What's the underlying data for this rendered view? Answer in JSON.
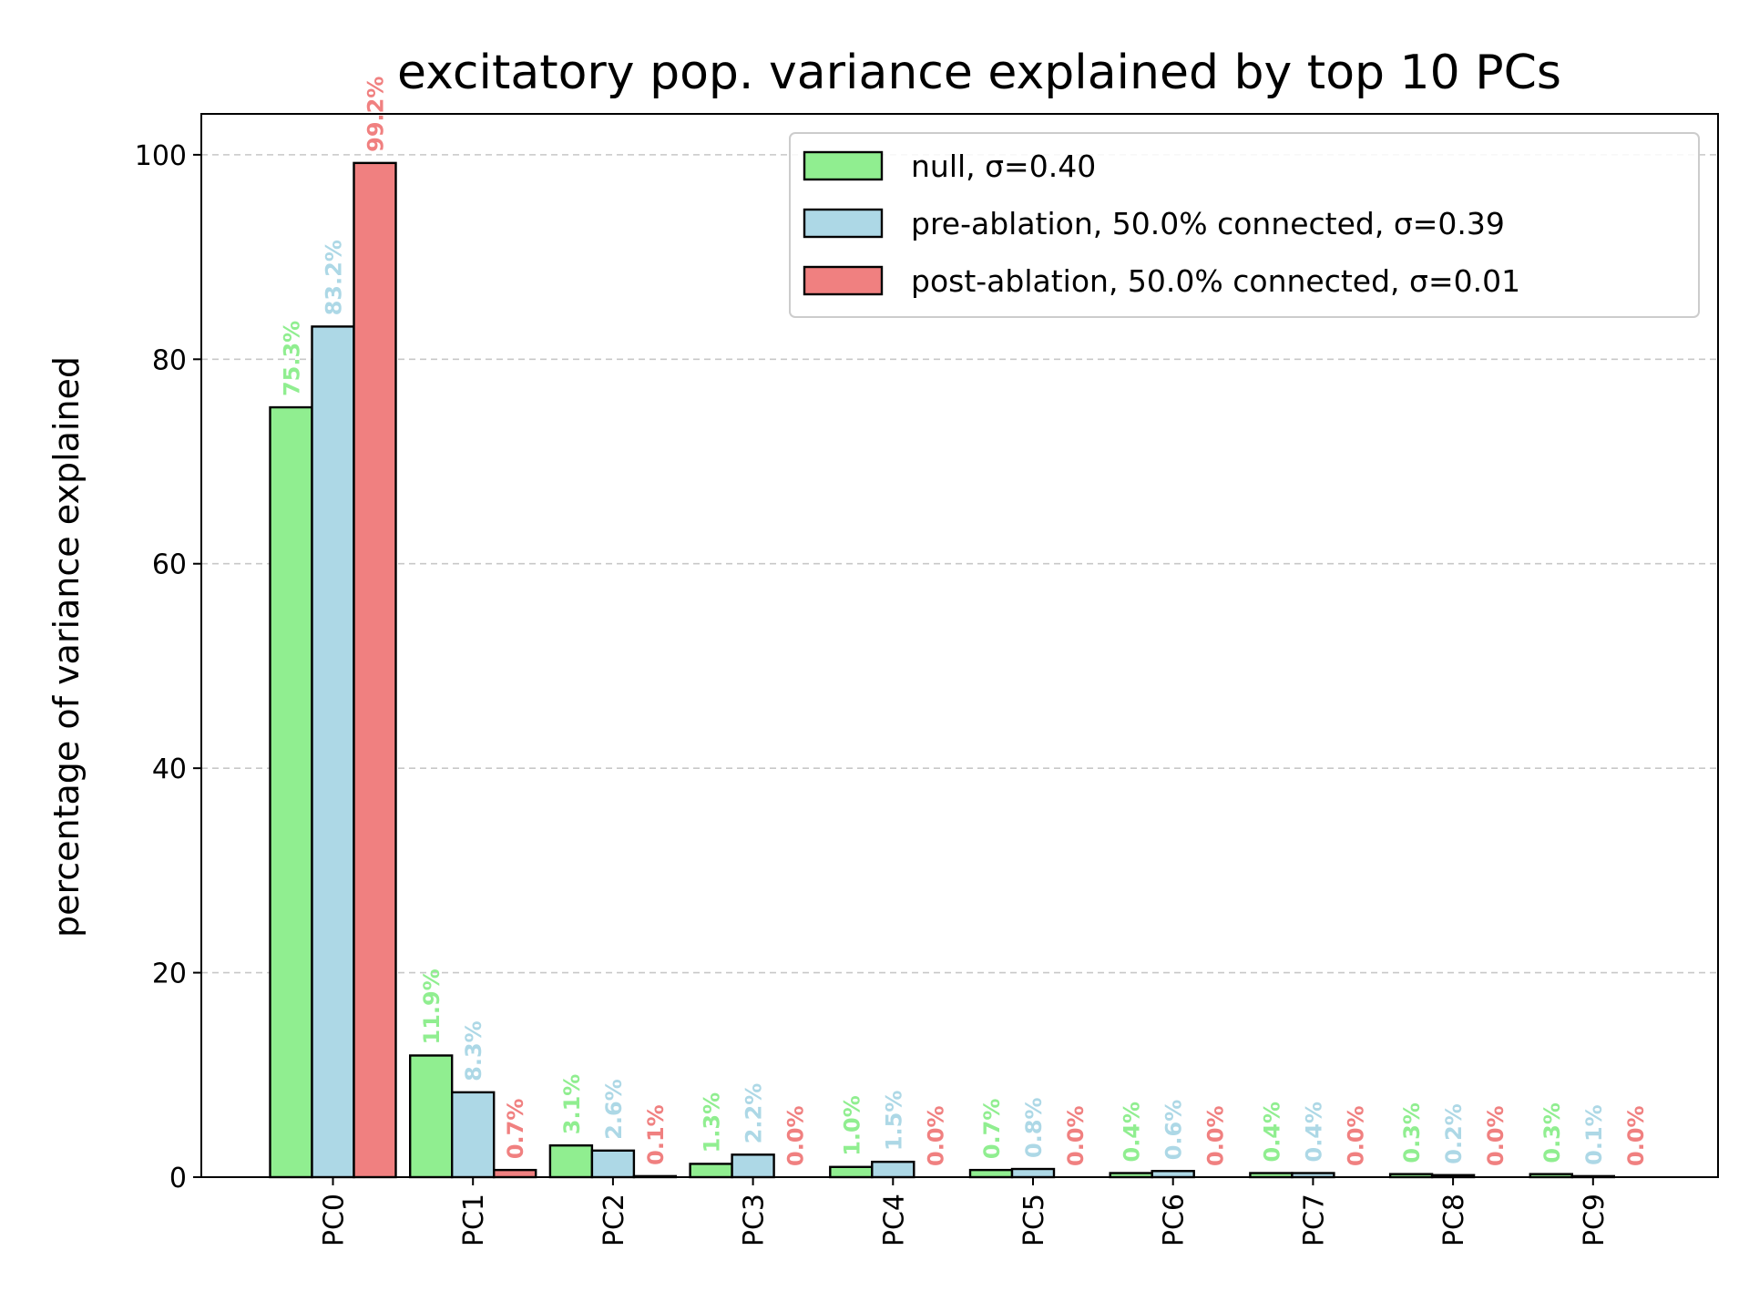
{
  "chart_data": {
    "type": "bar",
    "title": "excitatory pop. variance explained by top 10 PCs",
    "xlabel": "",
    "ylabel": "percentage of variance explained",
    "ylim": [
      0,
      104
    ],
    "yticks": [
      0,
      20,
      40,
      60,
      80,
      100
    ],
    "grid": "y-dashed",
    "legend_position": "top-right",
    "categories": [
      "PC0",
      "PC1",
      "PC2",
      "PC3",
      "PC4",
      "PC5",
      "PC6",
      "PC7",
      "PC8",
      "PC9"
    ],
    "series": [
      {
        "name": "null, σ=0.40",
        "color": "#90ee90",
        "values": [
          75.3,
          11.9,
          3.1,
          1.3,
          1.0,
          0.7,
          0.4,
          0.4,
          0.3,
          0.3
        ],
        "labels": [
          "75.3%",
          "11.9%",
          "3.1%",
          "1.3%",
          "1.0%",
          "0.7%",
          "0.4%",
          "0.4%",
          "0.3%",
          "0.3%"
        ]
      },
      {
        "name": "pre-ablation, 50.0% connected, σ=0.39",
        "color": "#add8e6",
        "values": [
          83.2,
          8.3,
          2.6,
          2.2,
          1.5,
          0.8,
          0.6,
          0.4,
          0.2,
          0.1
        ],
        "labels": [
          "83.2%",
          "8.3%",
          "2.6%",
          "2.2%",
          "1.5%",
          "0.8%",
          "0.6%",
          "0.4%",
          "0.2%",
          "0.1%"
        ]
      },
      {
        "name": "post-ablation, 50.0% connected, σ=0.01",
        "color": "#f08080",
        "values": [
          99.2,
          0.7,
          0.1,
          0.0,
          0.0,
          0.0,
          0.0,
          0.0,
          0.0,
          0.0
        ],
        "labels": [
          "99.2%",
          "0.7%",
          "0.1%",
          "0.0%",
          "0.0%",
          "0.0%",
          "0.0%",
          "0.0%",
          "0.0%",
          "0.0%"
        ]
      }
    ]
  }
}
